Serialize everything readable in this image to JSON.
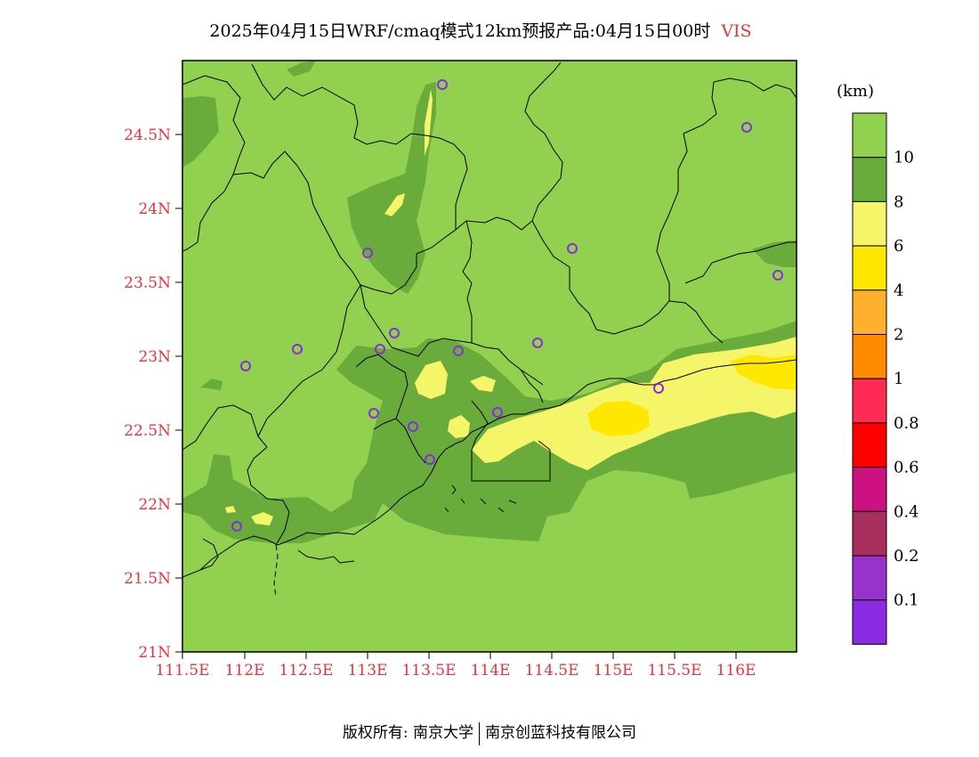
{
  "title": {
    "text": "2025年04月15日WRF/cmaq模式12km预报产品:04月15日00时",
    "variable": "VIS"
  },
  "map": {
    "lon_ticks": [
      "111.5E",
      "112E",
      "112.5E",
      "113E",
      "113.5E",
      "114E",
      "114.5E",
      "115E",
      "115.5E",
      "116E"
    ],
    "lat_ticks": [
      "21N",
      "21.5N",
      "22N",
      "22.5N",
      "23N",
      "23.5N",
      "24N",
      "24.5N"
    ],
    "colors": {
      "background_field": "#92d050",
      "dark_green": "#6aac3c",
      "light_yellow": "#f5f56a",
      "yellow": "#ffe800",
      "station_marker": "#8a2be2"
    },
    "stations_count_note": ""
  },
  "legend": {
    "unit": "(km)",
    "labels": [
      "10",
      "8",
      "6",
      "4",
      "2",
      "1",
      "0.8",
      "0.6",
      "0.4",
      "0.2",
      "0.1"
    ],
    "colors": [
      "#92d050",
      "#6aac3c",
      "#f5f56a",
      "#ffe800",
      "#ffb02e",
      "#ff8c00",
      "#ff2b55",
      "#ff0000",
      "#cc1280",
      "#a82e5e",
      "#9932cc",
      "#8a2be2"
    ]
  },
  "footer": {
    "left": "版权所有: 南京大学",
    "right": "南京创蓝科技有限公司"
  }
}
